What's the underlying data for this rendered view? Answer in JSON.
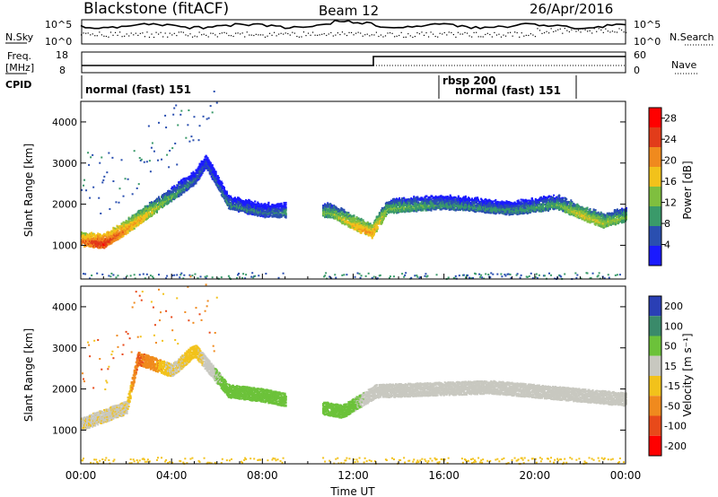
{
  "header": {
    "station": "Blackstone (fitACF)",
    "beam": "Beam 12",
    "date": "26/Apr/2016"
  },
  "noise_panel": {
    "left_label": "N.Sky",
    "left_ticks": [
      "10^5",
      "10^0"
    ],
    "right_label": "N.Search",
    "right_ticks": [
      "10^5",
      "10^0"
    ]
  },
  "freq_panel": {
    "left_label_line1": "Freq.",
    "left_label_line2": "[MHz]",
    "left_ticks": [
      "18",
      "8"
    ],
    "right_label": "Nave",
    "right_ticks": [
      "60",
      "0"
    ]
  },
  "cpid_panel": {
    "label": "CPID",
    "modes": [
      {
        "text": "normal (fast) 151",
        "start_hour": 0
      },
      {
        "text": "rbsp 200",
        "start_hour": 16
      },
      {
        "text": "normal (fast) 151",
        "start_hour": 16
      }
    ]
  },
  "chart_data": [
    {
      "type": "heatmap",
      "title": "Power",
      "ylabel": "Slant Range [km]",
      "xlabel": "Time UT",
      "x_ticks": [
        "00:00",
        "04:00",
        "08:00",
        "12:00",
        "16:00",
        "20:00",
        "00:00"
      ],
      "xlim_hours": [
        0,
        24
      ],
      "y_ticks": [
        1000,
        2000,
        3000,
        4000
      ],
      "ylim_km": [
        180,
        4500
      ],
      "colorbar_label": "Power [dB]",
      "colorbar_ticks": [
        4,
        8,
        12,
        16,
        20,
        24,
        28
      ],
      "colorbar_range": [
        0,
        30
      ],
      "colors": [
        "#1a1aff",
        "#2a4fb0",
        "#3a9a6a",
        "#7fbf3f",
        "#f2c21b",
        "#f08a1e",
        "#e23c1a",
        "#ff0000"
      ],
      "features": [
        {
          "hour": 0.0,
          "range_km": 1100,
          "power_db": 24
        },
        {
          "hour": 1.0,
          "range_km": 1050,
          "power_db": 28
        },
        {
          "hour": 2.0,
          "range_km": 1400,
          "power_db": 22
        },
        {
          "hour": 3.0,
          "range_km": 1800,
          "power_db": 18
        },
        {
          "hour": 4.0,
          "range_km": 2200,
          "power_db": 12
        },
        {
          "hour": 5.0,
          "range_km": 2600,
          "power_db": 8
        },
        {
          "hour": 5.5,
          "range_km": 3000,
          "power_db": 6
        },
        {
          "hour": 6.5,
          "range_km": 2000,
          "power_db": 10
        },
        {
          "hour": 8.0,
          "range_km": 1800,
          "power_db": 8
        },
        {
          "hour": 11.0,
          "range_km": 1800,
          "power_db": 14
        },
        {
          "hour": 12.0,
          "range_km": 1500,
          "power_db": 20
        },
        {
          "hour": 12.8,
          "range_km": 1300,
          "power_db": 22
        },
        {
          "hour": 13.5,
          "range_km": 1900,
          "power_db": 14
        },
        {
          "hour": 16.0,
          "range_km": 2000,
          "power_db": 10
        },
        {
          "hour": 19.0,
          "range_km": 1850,
          "power_db": 10
        },
        {
          "hour": 21.0,
          "range_km": 2000,
          "power_db": 12
        },
        {
          "hour": 22.0,
          "range_km": 1750,
          "power_db": 18
        },
        {
          "hour": 23.0,
          "range_km": 1550,
          "power_db": 16
        },
        {
          "hour": 24.0,
          "range_km": 1700,
          "power_db": 14
        }
      ]
    },
    {
      "type": "heatmap",
      "title": "Velocity",
      "ylabel": "Slant Range [km]",
      "xlabel": "Time UT",
      "x_ticks": [
        "00:00",
        "04:00",
        "08:00",
        "12:00",
        "16:00",
        "20:00",
        "00:00"
      ],
      "xlim_hours": [
        0,
        24
      ],
      "y_ticks": [
        1000,
        2000,
        3000,
        4000
      ],
      "ylim_km": [
        180,
        4500
      ],
      "colorbar_label": "Velocity [m s⁻¹]",
      "colorbar_ticks": [
        200,
        100,
        50,
        15,
        -15,
        -50,
        -100,
        -200
      ],
      "colors": [
        "#2a3fb5",
        "#3a8a6a",
        "#6cc23a",
        "#c8c8c0",
        "#f2c21b",
        "#f08a1e",
        "#e84a1a",
        "#ff0000"
      ],
      "features": [
        {
          "hour": 0.0,
          "range_km": 1100,
          "velocity": -10
        },
        {
          "hour": 2.0,
          "range_km": 1500,
          "velocity": -10
        },
        {
          "hour": 2.5,
          "range_km": 2700,
          "velocity": -80
        },
        {
          "hour": 4.0,
          "range_km": 2400,
          "velocity": -10
        },
        {
          "hour": 5.0,
          "range_km": 2900,
          "velocity": -30
        },
        {
          "hour": 6.5,
          "range_km": 1900,
          "velocity": 60
        },
        {
          "hour": 8.0,
          "range_km": 1800,
          "velocity": 50
        },
        {
          "hour": 11.5,
          "range_km": 1400,
          "velocity": 60
        },
        {
          "hour": 13.0,
          "range_km": 1900,
          "velocity": 0
        },
        {
          "hour": 18.0,
          "range_km": 2000,
          "velocity": 0
        },
        {
          "hour": 24.0,
          "range_km": 1700,
          "velocity": 0
        }
      ]
    }
  ]
}
